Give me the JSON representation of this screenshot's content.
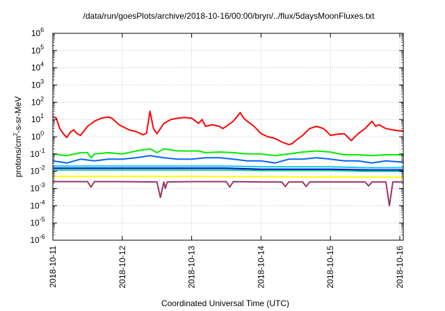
{
  "chart_data": {
    "type": "line",
    "title": "/data/run/goesPlots/archive/2018-10-16/00:00/bryn/../flux/5daysMoonFluxes.txt",
    "xlabel": "Coordinated Universal Time (UTC)",
    "ylabel_main": "protons/cm",
    "ylabel_sup": "2",
    "ylabel_rest": "-s-sr-MeV",
    "y_scale": "log",
    "ylim": [
      1e-06,
      1000000.0
    ],
    "y_ticks": [
      {
        "base": "10",
        "exp": "-6"
      },
      {
        "base": "10",
        "exp": "-5"
      },
      {
        "base": "10",
        "exp": "-4"
      },
      {
        "base": "10",
        "exp": "-3"
      },
      {
        "base": "10",
        "exp": "-2"
      },
      {
        "base": "10",
        "exp": "-1"
      },
      {
        "base": "10",
        "exp": "0"
      },
      {
        "base": "10",
        "exp": "1"
      },
      {
        "base": "10",
        "exp": "2"
      },
      {
        "base": "10",
        "exp": "3"
      },
      {
        "base": "10",
        "exp": "4"
      },
      {
        "base": "10",
        "exp": "5"
      },
      {
        "base": "10",
        "exp": "6"
      }
    ],
    "x_ticks": [
      "2018-10-11",
      "2018-10-12",
      "2018-10-13",
      "2018-10-14",
      "2018-10-15",
      "2018-10-16"
    ],
    "xlim_days": [
      0,
      5.05
    ],
    "grid": true,
    "legend": "none",
    "series": [
      {
        "color": "#ff0000",
        "points": [
          [
            0,
            15
          ],
          [
            0.05,
            12
          ],
          [
            0.1,
            3
          ],
          [
            0.15,
            1.5
          ],
          [
            0.2,
            0.9
          ],
          [
            0.25,
            1.8
          ],
          [
            0.3,
            2.5
          ],
          [
            0.35,
            1.5
          ],
          [
            0.4,
            1.2
          ],
          [
            0.5,
            4
          ],
          [
            0.6,
            8
          ],
          [
            0.7,
            12
          ],
          [
            0.8,
            14
          ],
          [
            0.85,
            12
          ],
          [
            0.9,
            8
          ],
          [
            0.95,
            5
          ],
          [
            1.0,
            4
          ],
          [
            1.1,
            2.5
          ],
          [
            1.2,
            2
          ],
          [
            1.3,
            1.3
          ],
          [
            1.35,
            1.6
          ],
          [
            1.4,
            30
          ],
          [
            1.45,
            3
          ],
          [
            1.5,
            1.5
          ],
          [
            1.55,
            3
          ],
          [
            1.6,
            6
          ],
          [
            1.7,
            10
          ],
          [
            1.8,
            12
          ],
          [
            1.9,
            13
          ],
          [
            2.0,
            12
          ],
          [
            2.1,
            6
          ],
          [
            2.15,
            10
          ],
          [
            2.2,
            4
          ],
          [
            2.3,
            5
          ],
          [
            2.4,
            4
          ],
          [
            2.45,
            3
          ],
          [
            2.5,
            4
          ],
          [
            2.6,
            8
          ],
          [
            2.7,
            25
          ],
          [
            2.75,
            12
          ],
          [
            2.8,
            8
          ],
          [
            2.9,
            4
          ],
          [
            3.0,
            1.5
          ],
          [
            3.1,
            1.0
          ],
          [
            3.2,
            0.8
          ],
          [
            3.3,
            0.5
          ],
          [
            3.4,
            0.35
          ],
          [
            3.45,
            0.4
          ],
          [
            3.5,
            0.6
          ],
          [
            3.6,
            1.2
          ],
          [
            3.7,
            3
          ],
          [
            3.8,
            4
          ],
          [
            3.9,
            3
          ],
          [
            3.95,
            2
          ],
          [
            4.0,
            1.2
          ],
          [
            4.1,
            1.4
          ],
          [
            4.2,
            1.5
          ],
          [
            4.3,
            0.6
          ],
          [
            4.4,
            1.5
          ],
          [
            4.5,
            3
          ],
          [
            4.6,
            8
          ],
          [
            4.65,
            4
          ],
          [
            4.7,
            5
          ],
          [
            4.8,
            3
          ],
          [
            4.9,
            2.5
          ],
          [
            5.0,
            2.2
          ],
          [
            5.05,
            2.2
          ]
        ]
      },
      {
        "color": "#00ee00",
        "points": [
          [
            0,
            0.1
          ],
          [
            0.2,
            0.08
          ],
          [
            0.4,
            0.12
          ],
          [
            0.5,
            0.12
          ],
          [
            0.55,
            0.06
          ],
          [
            0.6,
            0.1
          ],
          [
            0.8,
            0.12
          ],
          [
            1.0,
            0.1
          ],
          [
            1.2,
            0.15
          ],
          [
            1.4,
            0.2
          ],
          [
            1.5,
            0.12
          ],
          [
            1.6,
            0.2
          ],
          [
            1.8,
            0.15
          ],
          [
            2.0,
            0.15
          ],
          [
            2.1,
            0.15
          ],
          [
            2.2,
            0.12
          ],
          [
            2.4,
            0.13
          ],
          [
            2.6,
            0.12
          ],
          [
            2.8,
            0.1
          ],
          [
            3.0,
            0.1
          ],
          [
            3.2,
            0.08
          ],
          [
            3.4,
            0.1
          ],
          [
            3.6,
            0.13
          ],
          [
            3.8,
            0.15
          ],
          [
            4.0,
            0.13
          ],
          [
            4.2,
            0.09
          ],
          [
            4.4,
            0.09
          ],
          [
            4.6,
            0.08
          ],
          [
            4.8,
            0.09
          ],
          [
            5.0,
            0.09
          ],
          [
            5.05,
            0.09
          ]
        ]
      },
      {
        "color": "#0066ff",
        "points": [
          [
            0,
            0.04
          ],
          [
            0.2,
            0.03
          ],
          [
            0.4,
            0.05
          ],
          [
            0.6,
            0.04
          ],
          [
            0.8,
            0.05
          ],
          [
            1.0,
            0.05
          ],
          [
            1.2,
            0.06
          ],
          [
            1.4,
            0.08
          ],
          [
            1.6,
            0.06
          ],
          [
            1.8,
            0.05
          ],
          [
            2.0,
            0.05
          ],
          [
            2.2,
            0.06
          ],
          [
            2.4,
            0.06
          ],
          [
            2.6,
            0.05
          ],
          [
            2.8,
            0.04
          ],
          [
            3.0,
            0.04
          ],
          [
            3.2,
            0.03
          ],
          [
            3.4,
            0.05
          ],
          [
            3.6,
            0.05
          ],
          [
            3.8,
            0.06
          ],
          [
            4.0,
            0.05
          ],
          [
            4.2,
            0.04
          ],
          [
            4.4,
            0.04
          ],
          [
            4.6,
            0.03
          ],
          [
            4.8,
            0.04
          ],
          [
            5.0,
            0.035
          ],
          [
            5.05,
            0.035
          ]
        ]
      },
      {
        "color": "#00c8ff",
        "points": [
          [
            0,
            0.02
          ],
          [
            0.5,
            0.02
          ],
          [
            1.0,
            0.02
          ],
          [
            1.5,
            0.02
          ],
          [
            2.0,
            0.02
          ],
          [
            2.5,
            0.02
          ],
          [
            3.0,
            0.018
          ],
          [
            3.5,
            0.018
          ],
          [
            4.0,
            0.018
          ],
          [
            4.5,
            0.016
          ],
          [
            5.0,
            0.016
          ],
          [
            5.05,
            0.016
          ]
        ]
      },
      {
        "color": "#0000cc",
        "points": [
          [
            0,
            0.015
          ],
          [
            0.5,
            0.015
          ],
          [
            1.0,
            0.015
          ],
          [
            1.5,
            0.015
          ],
          [
            2.0,
            0.015
          ],
          [
            2.5,
            0.015
          ],
          [
            3.0,
            0.013
          ],
          [
            3.5,
            0.013
          ],
          [
            4.0,
            0.013
          ],
          [
            4.5,
            0.012
          ],
          [
            5.0,
            0.012
          ],
          [
            5.05,
            0.012
          ]
        ]
      },
      {
        "color": "#00cc88",
        "points": [
          [
            0,
            0.012
          ],
          [
            0.5,
            0.012
          ],
          [
            1.0,
            0.012
          ],
          [
            1.5,
            0.012
          ],
          [
            2.0,
            0.012
          ],
          [
            2.5,
            0.012
          ],
          [
            3.0,
            0.011
          ],
          [
            3.5,
            0.011
          ],
          [
            4.0,
            0.011
          ],
          [
            4.5,
            0.01
          ],
          [
            5.0,
            0.01
          ],
          [
            5.05,
            0.01
          ]
        ]
      },
      {
        "color": "#ffff00",
        "points": [
          [
            0,
            0.005
          ],
          [
            1.0,
            0.005
          ],
          [
            2.0,
            0.005
          ],
          [
            3.0,
            0.0048
          ],
          [
            4.0,
            0.0046
          ],
          [
            5.0,
            0.0045
          ],
          [
            5.05,
            0.0045
          ]
        ]
      },
      {
        "color": "#993366",
        "points": [
          [
            0,
            0.0025
          ],
          [
            0.5,
            0.0025
          ],
          [
            0.55,
            0.0012
          ],
          [
            0.6,
            0.0025
          ],
          [
            1.0,
            0.0025
          ],
          [
            1.5,
            0.0024
          ],
          [
            1.55,
            0.0003
          ],
          [
            1.6,
            0.0024
          ],
          [
            1.62,
            0.001
          ],
          [
            1.65,
            0.0024
          ],
          [
            2.0,
            0.0025
          ],
          [
            2.5,
            0.0025
          ],
          [
            2.55,
            0.0012
          ],
          [
            2.6,
            0.0025
          ],
          [
            3.0,
            0.0024
          ],
          [
            3.3,
            0.0024
          ],
          [
            3.35,
            0.0013
          ],
          [
            3.4,
            0.0024
          ],
          [
            3.6,
            0.0024
          ],
          [
            3.65,
            0.0013
          ],
          [
            3.7,
            0.0024
          ],
          [
            4.0,
            0.0024
          ],
          [
            4.5,
            0.0024
          ],
          [
            4.55,
            0.0014
          ],
          [
            4.6,
            0.0024
          ],
          [
            4.8,
            0.0024
          ],
          [
            4.85,
            0.0001
          ],
          [
            4.9,
            0.0024
          ],
          [
            5.05,
            0.0024
          ]
        ]
      }
    ]
  }
}
